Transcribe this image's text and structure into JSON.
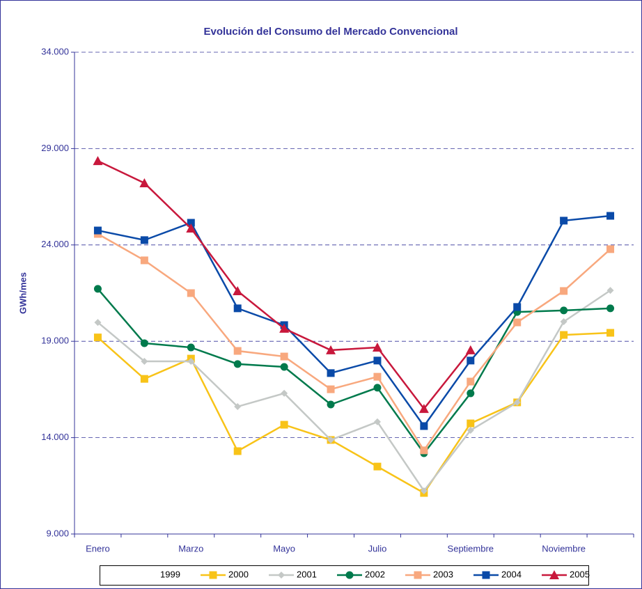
{
  "chart_data": {
    "type": "line",
    "title": "Evolución del Consumo del Mercado Convencional",
    "y_label": "GWh/mes",
    "categories": [
      "Enero",
      null,
      "Marzo",
      null,
      "Mayo",
      null,
      "Julio",
      null,
      "Septiembre",
      null,
      "Noviembre",
      null
    ],
    "ylim": [
      9000,
      34000
    ],
    "yticks": [
      {
        "value": 9000,
        "label": "9.000"
      },
      {
        "value": 14000,
        "label": "14.000"
      },
      {
        "value": 19000,
        "label": "19.000"
      },
      {
        "value": 24000,
        "label": "24.000"
      },
      {
        "value": 29000,
        "label": "29.000"
      },
      {
        "value": 34000,
        "label": "34.000"
      }
    ],
    "grid": true,
    "legend": "bottom",
    "series": [
      {
        "name": "1999",
        "color": "none",
        "marker": "none",
        "values": [
          null,
          null,
          null,
          null,
          null,
          null,
          null,
          null,
          null,
          null,
          null,
          null
        ]
      },
      {
        "name": "2000",
        "color": "#f8c318",
        "marker": "square",
        "values": [
          19200,
          17050,
          18100,
          13300,
          14670,
          13880,
          12500,
          11130,
          14740,
          15830,
          19330,
          19440
        ]
      },
      {
        "name": "2001",
        "color": "#c4c8c6",
        "marker": "diamond",
        "values": [
          19980,
          17960,
          17960,
          15610,
          16300,
          13880,
          14820,
          11240,
          14380,
          15830,
          20020,
          21640
        ]
      },
      {
        "name": "2002",
        "color": "#007a4c",
        "marker": "circle",
        "values": [
          21720,
          18900,
          18680,
          17820,
          17670,
          15720,
          16590,
          13190,
          16300,
          20520,
          20600,
          20710
        ]
      },
      {
        "name": "2003",
        "color": "#f8a87e",
        "marker": "square",
        "values": [
          24570,
          23200,
          21500,
          18500,
          18210,
          16510,
          17160,
          13340,
          16910,
          19980,
          21610,
          23780
        ]
      },
      {
        "name": "2004",
        "color": "#0a4aa8",
        "marker": "square",
        "values": [
          24750,
          24250,
          25150,
          20710,
          19840,
          17350,
          18000,
          14600,
          18000,
          20780,
          25260,
          25510
        ]
      },
      {
        "name": "2005",
        "color": "#c8183c",
        "marker": "triangle",
        "values": [
          28360,
          27210,
          24860,
          21610,
          19660,
          18540,
          18680,
          15500,
          18540,
          null,
          null,
          null
        ]
      }
    ]
  }
}
